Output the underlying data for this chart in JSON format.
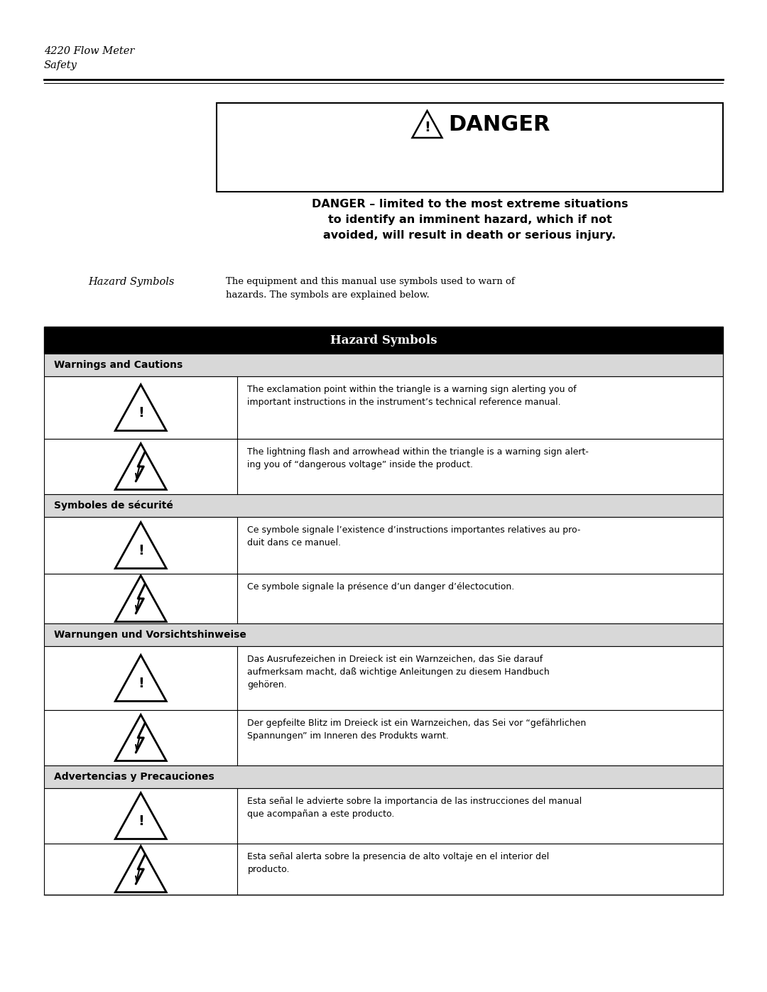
{
  "page_header_line1": "4220 Flow Meter",
  "page_header_line2": "Safety",
  "hazard_label": "Hazard Symbols",
  "hazard_intro": "The equipment and this manual use symbols used to warn of\nhazards. The symbols are explained below.",
  "table_title": "Hazard Symbols",
  "danger_body_line1": "DANGER – limited to the most extreme situations",
  "danger_body_line2": "to identify an imminent hazard, which if not",
  "danger_body_line3": "avoided, will result in death or serious injury.",
  "sections": [
    {
      "header": "Warnings and Cautions",
      "rows": [
        {
          "symbol": "exclamation",
          "text": "The exclamation point within the triangle is a warning sign alerting you of\nimportant instructions in the instrument’s technical reference manual."
        },
        {
          "symbol": "lightning",
          "text": "The lightning flash and arrowhead within the triangle is a warning sign alert-\ning you of “dangerous voltage” inside the product."
        }
      ]
    },
    {
      "header": "Symboles de sécurité",
      "rows": [
        {
          "symbol": "exclamation",
          "text": "Ce symbole signale l’existence d’instructions importantes relatives au pro-\nduit dans ce manuel."
        },
        {
          "symbol": "lightning",
          "text": "Ce symbole signale la présence d’un danger d’électocution."
        }
      ]
    },
    {
      "header": "Warnungen und Vorsichtshinweise",
      "rows": [
        {
          "symbol": "exclamation",
          "text": "Das Ausrufezeichen in Dreieck ist ein Warnzeichen, das Sie darauf\naufmerksam macht, daß wichtige Anleitungen zu diesem Handbuch\ngehören."
        },
        {
          "symbol": "lightning",
          "text": "Der gepfeilte Blitz im Dreieck ist ein Warnzeichen, das Sei vor “gefährlichen\nSpannungen” im Inneren des Produkts warnt."
        }
      ]
    },
    {
      "header": "Advertencias y Precauciones",
      "rows": [
        {
          "symbol": "exclamation",
          "text": "Esta señal le advierte sobre la importancia de las instrucciones del manual\nque acompañan a este producto."
        },
        {
          "symbol": "lightning",
          "text": "Esta señal alerta sobre la presencia de alto voltaje en el interior del\nproducto."
        }
      ]
    }
  ],
  "bg_color": "#ffffff",
  "table_header_bg": "#000000",
  "table_header_fg": "#ffffff",
  "section_header_bg": "#d8d8d8",
  "table_border_color": "#000000"
}
